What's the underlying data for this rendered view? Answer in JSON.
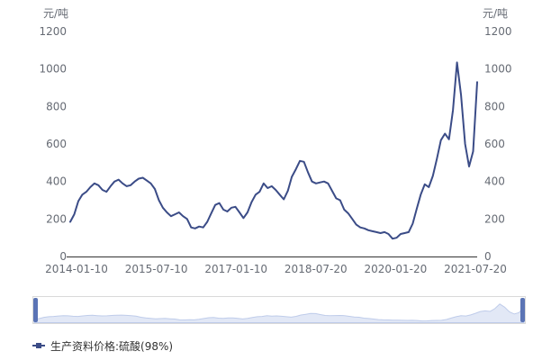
{
  "chart": {
    "y_unit_left": "元/吨",
    "y_unit_right": "元/吨",
    "series_color": "#3b4c87",
    "axis_label_color": "#666b74",
    "axis_line_color": "#333333"
  },
  "legend": {
    "label": "生产资料价格:硫酸(98%)",
    "color": "#3b4c87"
  },
  "navigator": {
    "border_color": "#d9d9d9",
    "area_fill": "#e2e8f6",
    "area_line": "#bfccea",
    "handle_color": "#5b74b5"
  },
  "chart_data": {
    "type": "line",
    "title": "",
    "ylabel": "元/吨",
    "ylim": [
      0,
      1200
    ],
    "y_ticks": [
      0,
      200,
      400,
      600,
      800,
      1000,
      1200
    ],
    "grid": false,
    "legend_position": "bottom",
    "x_tick_labels": [
      "2014-01-10",
      "2015-07-10",
      "2017-01-10",
      "2018-07-20",
      "2020-01-20",
      "2021-07-20"
    ],
    "series": [
      {
        "name": "生产资料价格:硫酸(98%)",
        "values": [
          185,
          225,
          295,
          330,
          345,
          370,
          390,
          380,
          355,
          345,
          375,
          400,
          410,
          390,
          375,
          380,
          400,
          415,
          420,
          405,
          390,
          360,
          300,
          260,
          235,
          215,
          225,
          235,
          215,
          200,
          155,
          150,
          160,
          155,
          185,
          230,
          275,
          285,
          250,
          240,
          260,
          265,
          235,
          205,
          235,
          290,
          330,
          345,
          390,
          365,
          375,
          355,
          330,
          305,
          350,
          425,
          465,
          510,
          505,
          450,
          400,
          390,
          395,
          400,
          390,
          350,
          310,
          300,
          250,
          230,
          200,
          170,
          155,
          150,
          140,
          135,
          130,
          125,
          130,
          120,
          95,
          100,
          120,
          125,
          130,
          175,
          255,
          330,
          385,
          370,
          430,
          520,
          620,
          655,
          625,
          780,
          1035,
          860,
          600,
          480,
          560,
          930
        ]
      }
    ]
  }
}
